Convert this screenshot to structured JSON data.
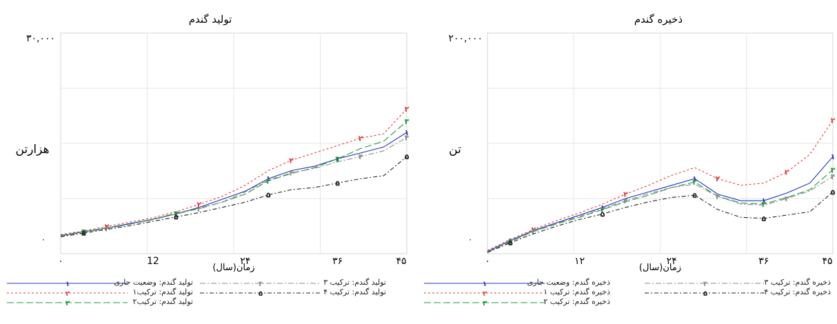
{
  "chart_data": [
    {
      "type": "line",
      "title": "تولید گندم",
      "ylabel": "هزارتن",
      "xlabel": "زمان(سال)",
      "x_ticks": [
        "۰",
        "12",
        "۲۴",
        "۳۶",
        "۴۵"
      ],
      "x_tick_values": [
        0,
        12,
        24,
        36,
        45
      ],
      "y_ticks": [
        "۰",
        "۳۰,۰۰۰"
      ],
      "xlim": [
        0,
        45
      ],
      "ylim": [
        0,
        30000
      ],
      "series": [
        {
          "name": "تولید گندم: وضعیت جاری",
          "marker": "۱",
          "color": "#1f2fb8",
          "dash": "none",
          "x": [
            0,
            3,
            6,
            9,
            12,
            15,
            18,
            21,
            24,
            27,
            30,
            33,
            36,
            39,
            42,
            45
          ],
          "y": [
            2400,
            3000,
            3500,
            4100,
            4700,
            5400,
            6300,
            7400,
            8500,
            10200,
            11300,
            11900,
            12900,
            13700,
            14500,
            16500
          ]
        },
        {
          "name": "تولید گندم: ترکیب۱",
          "marker": "۲",
          "color": "#e23b3b",
          "dash": "3,3",
          "x": [
            0,
            3,
            6,
            9,
            12,
            15,
            18,
            21,
            24,
            27,
            30,
            33,
            36,
            39,
            42,
            45
          ],
          "y": [
            2600,
            3100,
            3700,
            4300,
            4900,
            5700,
            6700,
            7800,
            9300,
            11300,
            12700,
            13700,
            14700,
            15700,
            16300,
            19700
          ]
        },
        {
          "name": "تولید گندم: ترکیب۲",
          "marker": "۳",
          "color": "#1c9a3a",
          "dash": "10,4",
          "x": [
            0,
            3,
            6,
            9,
            12,
            15,
            18,
            21,
            24,
            27,
            30,
            33,
            36,
            39,
            42,
            45
          ],
          "y": [
            2500,
            3000,
            3500,
            4000,
            4700,
            5500,
            6200,
            7000,
            8100,
            9900,
            10900,
            11700,
            12900,
            14300,
            15300,
            18000
          ]
        },
        {
          "name": "تولید گندم: ترکیب ۳",
          "marker": "۴",
          "color": "#888888",
          "dash": "8,3,2,3",
          "x": [
            0,
            3,
            6,
            9,
            12,
            15,
            18,
            21,
            24,
            27,
            30,
            33,
            36,
            39,
            42,
            45
          ],
          "y": [
            2400,
            2900,
            3400,
            4000,
            4600,
            5400,
            6100,
            7000,
            8400,
            10000,
            11000,
            11600,
            12500,
            13200,
            14000,
            15800
          ]
        },
        {
          "name": "تولید گندم: ترکیب ۴",
          "marker": "۵",
          "color": "#222222",
          "dash": "6,3,2,3",
          "x": [
            0,
            3,
            6,
            9,
            12,
            15,
            18,
            21,
            24,
            27,
            30,
            33,
            36,
            39,
            42,
            45
          ],
          "y": [
            2300,
            2800,
            3300,
            3800,
            4400,
            5000,
            5600,
            6300,
            7000,
            8000,
            8700,
            9000,
            9600,
            10200,
            10600,
            13200
          ]
        }
      ]
    },
    {
      "type": "line",
      "title": "ذخیره گندم",
      "ylabel": "تن",
      "xlabel": "زمان(سال)",
      "x_ticks": [
        "۰",
        "۱۲",
        "۲۴",
        "۳۶",
        "۴۵"
      ],
      "x_tick_values": [
        0,
        12,
        24,
        36,
        45
      ],
      "y_ticks": [
        "۰",
        "۲۰۰,۰۰۰"
      ],
      "xlim": [
        0,
        45
      ],
      "ylim": [
        0,
        200000
      ],
      "series": [
        {
          "name": "ذخیره گندم: وضعیت جاری",
          "marker": "۱",
          "color": "#1f2fb8",
          "dash": "none",
          "x": [
            0,
            3,
            6,
            9,
            12,
            15,
            18,
            21,
            24,
            27,
            30,
            33,
            36,
            39,
            42,
            45
          ],
          "y": [
            2000,
            12000,
            21000,
            28000,
            35000,
            42000,
            50000,
            56000,
            62000,
            68000,
            54000,
            48000,
            48000,
            55000,
            64000,
            88000
          ]
        },
        {
          "name": "ذخیره گندم: ترکیب ۱",
          "marker": "۲",
          "color": "#e23b3b",
          "dash": "3,3",
          "x": [
            0,
            3,
            6,
            9,
            12,
            15,
            18,
            21,
            24,
            27,
            30,
            33,
            36,
            39,
            42,
            45
          ],
          "y": [
            3000,
            13000,
            22000,
            30000,
            37000,
            45000,
            54000,
            62000,
            71000,
            78000,
            68000,
            62000,
            64000,
            74000,
            90000,
            121000
          ]
        },
        {
          "name": "ذخیره گندم: ترکیب ۲",
          "marker": "۳",
          "color": "#1c9a3a",
          "dash": "10,4",
          "x": [
            0,
            3,
            6,
            9,
            12,
            15,
            18,
            21,
            24,
            27,
            30,
            33,
            36,
            39,
            42,
            45
          ],
          "y": [
            1500,
            11000,
            20000,
            27000,
            33000,
            40000,
            47000,
            53000,
            60000,
            65000,
            52000,
            46000,
            45000,
            51000,
            58000,
            76000
          ]
        },
        {
          "name": "ذخیره گندم: ترکیب ۳",
          "marker": "۴",
          "color": "#888888",
          "dash": "8,3,2,3",
          "x": [
            0,
            3,
            6,
            9,
            12,
            15,
            18,
            21,
            24,
            27,
            30,
            33,
            36,
            39,
            42,
            45
          ],
          "y": [
            1500,
            11500,
            20500,
            27500,
            34000,
            41000,
            48000,
            54500,
            60000,
            63000,
            52000,
            45000,
            44000,
            50000,
            57000,
            70000
          ]
        },
        {
          "name": "ذخیره گندم: ترکیب ۴",
          "marker": "۵",
          "color": "#222222",
          "dash": "6,3,2,3",
          "x": [
            0,
            3,
            6,
            9,
            12,
            15,
            18,
            21,
            24,
            27,
            30,
            33,
            36,
            39,
            42,
            45
          ],
          "y": [
            1000,
            10000,
            18000,
            25000,
            31000,
            36000,
            42000,
            47000,
            51000,
            53000,
            40000,
            33000,
            32000,
            35000,
            38000,
            56000
          ]
        }
      ]
    }
  ]
}
